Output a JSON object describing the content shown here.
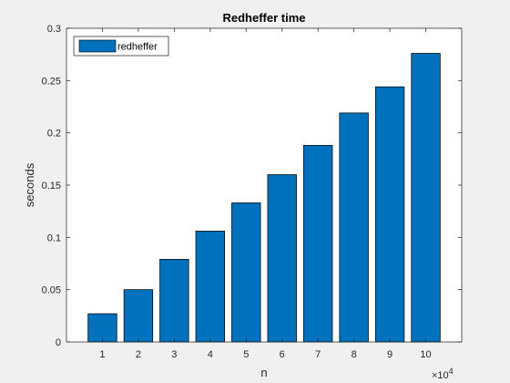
{
  "chart_data": {
    "type": "bar",
    "title": "Redheffer time",
    "xlabel": "n",
    "ylabel": "seconds",
    "x_exponent_base": "×10",
    "x_exponent_power": "4",
    "categories": [
      "1",
      "2",
      "3",
      "4",
      "5",
      "6",
      "7",
      "8",
      "9",
      "10"
    ],
    "series": [
      {
        "name": "redheffer",
        "values": [
          0.027,
          0.05,
          0.079,
          0.106,
          0.133,
          0.16,
          0.188,
          0.219,
          0.244,
          0.276
        ]
      }
    ],
    "ylim": [
      0,
      0.3
    ],
    "yticks": [
      0,
      0.05,
      0.1,
      0.15,
      0.2,
      0.25,
      0.3
    ],
    "ytick_labels": [
      "0",
      "0.05",
      "0.1",
      "0.15",
      "0.2",
      "0.25",
      "0.3"
    ],
    "grid": false,
    "legend_position": "top-left",
    "colors": {
      "bar": "#0072bd",
      "bar_edge": "#000000",
      "axes_bg": "#ffffff",
      "figure_bg": "#f0f0f0"
    }
  }
}
